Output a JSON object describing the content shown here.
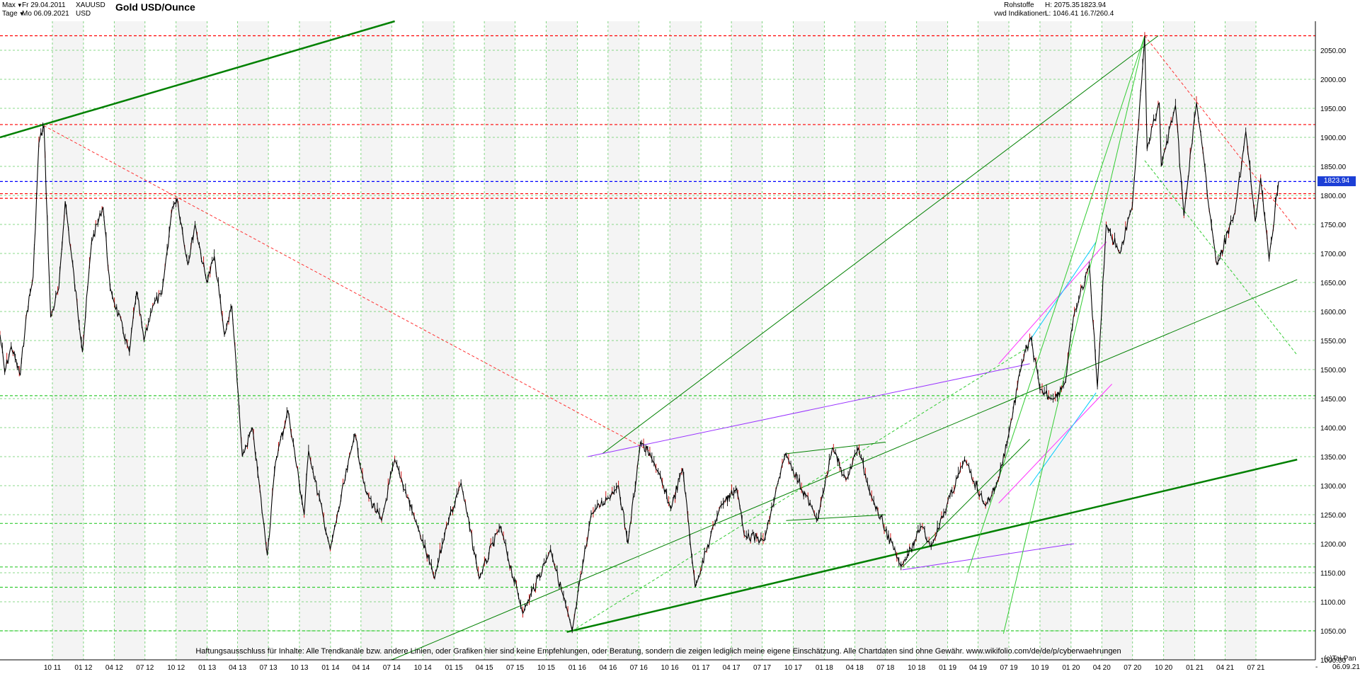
{
  "header": {
    "range_select": "Max",
    "from_date": "Fr 29.04.2011",
    "interval_select": "Tage",
    "to_date": "Mo 06.09.2021",
    "symbol": "XAUUSD",
    "currency": "USD",
    "title": "Gold USD/Ounce",
    "category": "Rohstoffe",
    "source": "vwd Indikationen",
    "high": "H: 2075.35",
    "low": "L: 1046.41",
    "last": "1823.94",
    "ratio": "16.7/260.4"
  },
  "footer": {
    "disclaimer": "Haftungsausschluss für Inhalte: Alle Trendkanäle bzw. andere Linien, oder Grafiken hier sind keine Empfehlungen, oder Beratung, sondern die zeigen lediglich meine eigene Einschätzung. Alle Chartdaten sind ohne Gewähr.  www.wikifolio.com/de/de/p/cyberwaehrungen",
    "copyright": "(c)Tai-Pan",
    "last_date": "06.09.21",
    "dash": "-"
  },
  "colors": {
    "price": "#000000",
    "price_down": "#cc0000",
    "grid": "#66cc66",
    "trend_dark": "#008000",
    "trend_light": "#33cc33",
    "resistance": "#ff0000",
    "purple": "#9933ff",
    "magenta": "#ff33ff",
    "cyan": "#00ccff",
    "blue_level": "#0000ff",
    "price_box": "#1c3fd6"
  },
  "chart_data": {
    "type": "line",
    "title": "Gold USD/Ounce",
    "x_type": "date",
    "x_range": [
      "2011-04-29",
      "2021-09-06"
    ],
    "ylim": [
      1000,
      2100
    ],
    "y_scale": "linear",
    "y_ticks": [
      1000,
      1050,
      1100,
      1150,
      1200,
      1250,
      1300,
      1350,
      1400,
      1450,
      1500,
      1550,
      1600,
      1650,
      1700,
      1750,
      1800,
      1850,
      1900,
      1950,
      2000,
      2050
    ],
    "y_tick_labels": [
      "1000.00",
      "1050.00",
      "1100.00",
      "1150.00",
      "1200.00",
      "1250.00",
      "1300.00",
      "1350.00",
      "1400.00",
      "1450.00",
      "1500.00",
      "1550.00",
      "1600.00",
      "1650.00",
      "1700.00",
      "1750.00",
      "1800.00",
      "1850.00",
      "1900.00",
      "1950.00",
      "2000.00",
      "2050.00"
    ],
    "x_ticks": [
      {
        "date": "2011-10-01",
        "label": "10 11"
      },
      {
        "date": "2012-01-01",
        "label": "01 12"
      },
      {
        "date": "2012-04-01",
        "label": "04 12"
      },
      {
        "date": "2012-07-01",
        "label": "07 12"
      },
      {
        "date": "2012-10-01",
        "label": "10 12"
      },
      {
        "date": "2013-01-01",
        "label": "01 13"
      },
      {
        "date": "2013-04-01",
        "label": "04 13"
      },
      {
        "date": "2013-07-01",
        "label": "07 13"
      },
      {
        "date": "2013-10-01",
        "label": "10 13"
      },
      {
        "date": "2014-01-01",
        "label": "01 14"
      },
      {
        "date": "2014-04-01",
        "label": "04 14"
      },
      {
        "date": "2014-07-01",
        "label": "07 14"
      },
      {
        "date": "2014-10-01",
        "label": "10 14"
      },
      {
        "date": "2015-01-01",
        "label": "01 15"
      },
      {
        "date": "2015-04-01",
        "label": "04 15"
      },
      {
        "date": "2015-07-01",
        "label": "07 15"
      },
      {
        "date": "2015-10-01",
        "label": "10 15"
      },
      {
        "date": "2016-01-01",
        "label": "01 16"
      },
      {
        "date": "2016-04-01",
        "label": "04 16"
      },
      {
        "date": "2016-07-01",
        "label": "07 16"
      },
      {
        "date": "2016-10-01",
        "label": "10 16"
      },
      {
        "date": "2017-01-01",
        "label": "01 17"
      },
      {
        "date": "2017-04-01",
        "label": "04 17"
      },
      {
        "date": "2017-07-01",
        "label": "07 17"
      },
      {
        "date": "2017-10-01",
        "label": "10 17"
      },
      {
        "date": "2018-01-01",
        "label": "01 18"
      },
      {
        "date": "2018-04-01",
        "label": "04 18"
      },
      {
        "date": "2018-07-01",
        "label": "07 18"
      },
      {
        "date": "2018-10-01",
        "label": "10 18"
      },
      {
        "date": "2019-01-01",
        "label": "01 19"
      },
      {
        "date": "2019-04-01",
        "label": "04 19"
      },
      {
        "date": "2019-07-01",
        "label": "07 19"
      },
      {
        "date": "2019-10-01",
        "label": "10 19"
      },
      {
        "date": "2020-01-01",
        "label": "01 20"
      },
      {
        "date": "2020-04-01",
        "label": "04 20"
      },
      {
        "date": "2020-07-01",
        "label": "07 20"
      },
      {
        "date": "2020-10-01",
        "label": "10 20"
      },
      {
        "date": "2021-01-01",
        "label": "01 21"
      },
      {
        "date": "2021-04-01",
        "label": "04 21"
      },
      {
        "date": "2021-07-01",
        "label": "07 21"
      }
    ],
    "grid": true,
    "last_price": 1823.94,
    "last_price_label": "1823.94",
    "series": [
      {
        "values": [
          [
            "2011-04-29",
            1560
          ],
          [
            "2011-05-13",
            1495
          ],
          [
            "2011-06-01",
            1540
          ],
          [
            "2011-06-28",
            1490
          ],
          [
            "2011-07-15",
            1590
          ],
          [
            "2011-08-05",
            1660
          ],
          [
            "2011-08-22",
            1890
          ],
          [
            "2011-09-06",
            1920
          ],
          [
            "2011-09-26",
            1590
          ],
          [
            "2011-10-20",
            1640
          ],
          [
            "2011-11-08",
            1790
          ],
          [
            "2011-12-29",
            1530
          ],
          [
            "2012-01-25",
            1720
          ],
          [
            "2012-02-28",
            1780
          ],
          [
            "2012-03-20",
            1640
          ],
          [
            "2012-05-16",
            1530
          ],
          [
            "2012-06-06",
            1635
          ],
          [
            "2012-06-28",
            1550
          ],
          [
            "2012-07-24",
            1610
          ],
          [
            "2012-08-20",
            1630
          ],
          [
            "2012-09-20",
            1780
          ],
          [
            "2012-10-04",
            1795
          ],
          [
            "2012-11-05",
            1680
          ],
          [
            "2012-11-26",
            1750
          ],
          [
            "2012-12-31",
            1650
          ],
          [
            "2013-01-22",
            1695
          ],
          [
            "2013-02-21",
            1560
          ],
          [
            "2013-03-15",
            1610
          ],
          [
            "2013-04-15",
            1350
          ],
          [
            "2013-05-15",
            1400
          ],
          [
            "2013-06-28",
            1180
          ],
          [
            "2013-07-22",
            1340
          ],
          [
            "2013-08-28",
            1430
          ],
          [
            "2013-10-15",
            1250
          ],
          [
            "2013-10-28",
            1360
          ],
          [
            "2013-12-31",
            1190
          ],
          [
            "2014-03-14",
            1390
          ],
          [
            "2014-04-15",
            1290
          ],
          [
            "2014-06-01",
            1240
          ],
          [
            "2014-07-10",
            1345
          ],
          [
            "2014-09-15",
            1230
          ],
          [
            "2014-11-05",
            1140
          ],
          [
            "2014-12-10",
            1230
          ],
          [
            "2015-01-22",
            1305
          ],
          [
            "2015-03-17",
            1140
          ],
          [
            "2015-05-18",
            1230
          ],
          [
            "2015-07-24",
            1080
          ],
          [
            "2015-10-14",
            1190
          ],
          [
            "2015-12-17",
            1050
          ],
          [
            "2016-02-11",
            1250
          ],
          [
            "2016-05-02",
            1300
          ],
          [
            "2016-05-30",
            1200
          ],
          [
            "2016-07-06",
            1375
          ],
          [
            "2016-08-15",
            1340
          ],
          [
            "2016-10-04",
            1260
          ],
          [
            "2016-11-08",
            1330
          ],
          [
            "2016-12-15",
            1125
          ],
          [
            "2017-02-27",
            1265
          ],
          [
            "2017-04-17",
            1295
          ],
          [
            "2017-05-09",
            1215
          ],
          [
            "2017-07-07",
            1205
          ],
          [
            "2017-09-08",
            1355
          ],
          [
            "2017-12-12",
            1240
          ],
          [
            "2018-01-25",
            1365
          ],
          [
            "2018-03-06",
            1310
          ],
          [
            "2018-04-11",
            1365
          ],
          [
            "2018-05-21",
            1280
          ],
          [
            "2018-08-16",
            1160
          ],
          [
            "2018-10-15",
            1230
          ],
          [
            "2018-11-13",
            1195
          ],
          [
            "2019-02-20",
            1345
          ],
          [
            "2019-04-23",
            1265
          ],
          [
            "2019-05-31",
            1310
          ],
          [
            "2019-07-01",
            1390
          ],
          [
            "2019-08-08",
            1510
          ],
          [
            "2019-09-04",
            1555
          ],
          [
            "2019-10-01",
            1465
          ],
          [
            "2019-11-12",
            1450
          ],
          [
            "2019-12-16",
            1480
          ],
          [
            "2020-01-08",
            1590
          ],
          [
            "2020-02-24",
            1680
          ],
          [
            "2020-03-19",
            1470
          ],
          [
            "2020-04-14",
            1750
          ],
          [
            "2020-05-25",
            1700
          ],
          [
            "2020-06-30",
            1780
          ],
          [
            "2020-08-06",
            2075
          ],
          [
            "2020-08-13",
            1880
          ],
          [
            "2020-09-18",
            1960
          ],
          [
            "2020-09-24",
            1850
          ],
          [
            "2020-11-05",
            1955
          ],
          [
            "2020-11-30",
            1765
          ],
          [
            "2021-01-06",
            1960
          ],
          [
            "2021-02-26",
            1720
          ],
          [
            "2021-03-08",
            1680
          ],
          [
            "2021-04-30",
            1770
          ],
          [
            "2021-06-01",
            1910
          ],
          [
            "2021-06-29",
            1755
          ],
          [
            "2021-07-15",
            1830
          ],
          [
            "2021-08-09",
            1690
          ],
          [
            "2021-09-06",
            1824
          ]
        ]
      }
    ],
    "horizontal_levels": [
      {
        "value": 2075,
        "style": "dashed",
        "color": "#ff0000"
      },
      {
        "value": 1922,
        "style": "dashed",
        "color": "#ff0000"
      },
      {
        "value": 1823.94,
        "style": "dashed",
        "color": "#0000ff"
      },
      {
        "value": 1803,
        "style": "dashed",
        "color": "#ff0000"
      },
      {
        "value": 1795,
        "style": "dashed",
        "color": "#ff0000"
      },
      {
        "value": 1455,
        "style": "dashed",
        "color": "#33cc33"
      },
      {
        "value": 1235,
        "style": "dashed",
        "color": "#33cc33"
      },
      {
        "value": 1160,
        "style": "dashed",
        "color": "#33cc33"
      },
      {
        "value": 1125,
        "style": "dashed",
        "color": "#33cc33"
      },
      {
        "value": 1050,
        "style": "dashed",
        "color": "#33cc33"
      }
    ],
    "trendlines": [
      {
        "from": [
          "2011-04-29",
          1900
        ],
        "to": [
          "2014-07-10",
          2100
        ],
        "color": "#008000",
        "width": 2.5
      },
      {
        "from": [
          "2015-12-01",
          1048
        ],
        "to": [
          "2021-10-31",
          1345
        ],
        "color": "#008000",
        "width": 2.5
      },
      {
        "from": [
          "2014-07-01",
          1000
        ],
        "to": [
          "2021-10-31",
          1655
        ],
        "color": "#008000",
        "width": 1
      },
      {
        "from": [
          "2016-03-15",
          1355
        ],
        "to": [
          "2020-09-15",
          2075
        ],
        "color": "#008000",
        "width": 1
      },
      {
        "from": [
          "2016-02-01",
          1350
        ],
        "to": [
          "2019-09-01",
          1510
        ],
        "color": "#9933ff",
        "width": 1
      },
      {
        "from": [
          "2018-08-20",
          1155
        ],
        "to": [
          "2020-01-10",
          1200
        ],
        "color": "#9933ff",
        "width": 1
      },
      {
        "from": [
          "2011-09-06",
          1920
        ],
        "to": [
          "2016-08-01",
          1360
        ],
        "color": "#ff3333",
        "width": 1,
        "style": "dashed"
      },
      {
        "from": [
          "2020-08-06",
          2075
        ],
        "to": [
          "2021-10-31",
          1740
        ],
        "color": "#ff3333",
        "width": 1,
        "style": "dashed"
      },
      {
        "from": [
          "2015-12-17",
          1050
        ],
        "to": [
          "2019-09-01",
          1540
        ],
        "color": "#33cc33",
        "width": 1,
        "style": "dashed"
      },
      {
        "from": [
          "2020-08-06",
          1860
        ],
        "to": [
          "2021-10-31",
          1525
        ],
        "color": "#33cc33",
        "width": 1,
        "style": "dashed"
      },
      {
        "from": [
          "2019-06-01",
          1510
        ],
        "to": [
          "2020-04-15",
          1720
        ],
        "color": "#ff33ff",
        "width": 1
      },
      {
        "from": [
          "2019-06-01",
          1270
        ],
        "to": [
          "2020-05-01",
          1475
        ],
        "color": "#ff33ff",
        "width": 1
      },
      {
        "from": [
          "2019-09-01",
          1550
        ],
        "to": [
          "2020-03-15",
          1720
        ],
        "color": "#00ccff",
        "width": 1
      },
      {
        "from": [
          "2019-09-01",
          1300
        ],
        "to": [
          "2020-03-15",
          1460
        ],
        "color": "#00ccff",
        "width": 1
      },
      {
        "from": [
          "2019-06-15",
          1045
        ],
        "to": [
          "2020-08-06",
          2075
        ],
        "color": "#33cc33",
        "width": 1
      },
      {
        "from": [
          "2019-03-01",
          1150
        ],
        "to": [
          "2020-08-06",
          2075
        ],
        "color": "#33cc33",
        "width": 1
      },
      {
        "from": [
          "2018-08-20",
          1160
        ],
        "to": [
          "2019-09-01",
          1380
        ],
        "color": "#008000",
        "width": 1
      },
      {
        "from": [
          "2017-09-10",
          1355
        ],
        "to": [
          "2018-07-01",
          1375
        ],
        "color": "#008000",
        "width": 1
      },
      {
        "from": [
          "2017-09-10",
          1240
        ],
        "to": [
          "2018-07-01",
          1250
        ],
        "color": "#008000",
        "width": 1
      }
    ]
  }
}
